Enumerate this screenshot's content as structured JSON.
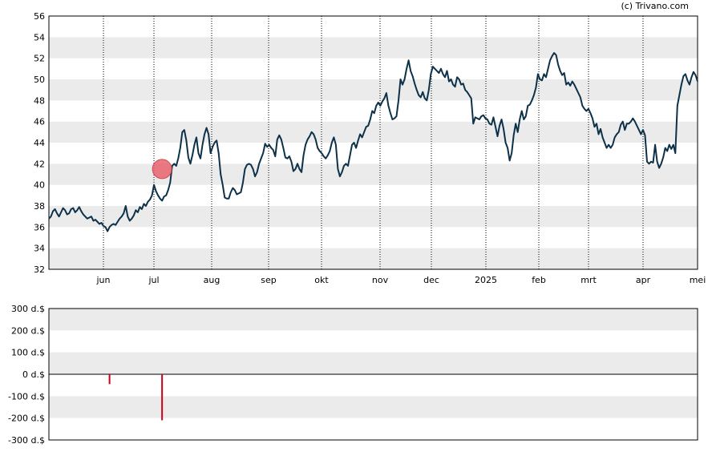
{
  "copyright": "(c) Trivano.com",
  "chart_data": [
    {
      "type": "line",
      "title": "",
      "xlabel": "",
      "ylabel": "",
      "ylim": [
        32,
        56
      ],
      "yticks": [
        32,
        34,
        36,
        38,
        40,
        42,
        44,
        46,
        48,
        50,
        52,
        54,
        56
      ],
      "x_tick_labels": [
        "jun",
        "jul",
        "aug",
        "sep",
        "okt",
        "nov",
        "dec",
        "2025",
        "feb",
        "mrt",
        "apr",
        "mei"
      ],
      "grid": "alternating horizontal bands, dotted vertical month lines",
      "line_color": "#0d3149",
      "series": [
        {
          "values": [
            36.8,
            37.0,
            37.5,
            37.7,
            37.3,
            37.0,
            37.4,
            37.8,
            37.6,
            37.2,
            37.3,
            37.7,
            37.8,
            37.4,
            37.6,
            37.9,
            37.5,
            37.2,
            37.0,
            36.8,
            36.9,
            37.0,
            36.6,
            36.7,
            36.5,
            36.3,
            36.4,
            36.1,
            36.0,
            35.6,
            36.0,
            36.2,
            36.3,
            36.2,
            36.5,
            36.8,
            37.0,
            37.3,
            38.0,
            37.0,
            36.6,
            36.8,
            37.1,
            37.6,
            37.4,
            37.9,
            37.7,
            38.2,
            38.0,
            38.4,
            38.6,
            39.0,
            40.0,
            39.4,
            39.0,
            38.7,
            38.5,
            38.9,
            39.0,
            39.5,
            40.2,
            41.8,
            42.0,
            41.8,
            42.5,
            43.5,
            45.0,
            45.2,
            44.2,
            42.6,
            42.0,
            42.8,
            43.8,
            44.5,
            43.0,
            42.5,
            43.8,
            44.8,
            45.4,
            44.8,
            43.0,
            43.6,
            44.0,
            44.2,
            43.0,
            41.0,
            40.0,
            38.8,
            38.7,
            38.7,
            39.3,
            39.7,
            39.5,
            39.1,
            39.2,
            39.3,
            40.2,
            41.5,
            41.9,
            42.0,
            41.9,
            41.5,
            40.8,
            41.2,
            42.0,
            42.5,
            43.0,
            43.9,
            43.6,
            43.8,
            43.5,
            43.3,
            42.7,
            44.3,
            44.7,
            44.3,
            43.5,
            42.6,
            42.5,
            42.7,
            42.2,
            41.3,
            41.5,
            42.0,
            41.5,
            41.2,
            42.8,
            43.8,
            44.3,
            44.6,
            45.0,
            44.8,
            44.3,
            43.5,
            43.2,
            43.0,
            42.7,
            42.5,
            42.8,
            43.2,
            44.0,
            44.5,
            43.8,
            41.5,
            40.8,
            41.2,
            41.8,
            42.0,
            41.8,
            42.8,
            43.8,
            44.0,
            43.5,
            44.2,
            44.8,
            44.5,
            45.0,
            45.5,
            45.6,
            46.2,
            47.0,
            46.8,
            47.5,
            47.8,
            47.5,
            47.9,
            48.2,
            48.7,
            47.5,
            46.8,
            46.2,
            46.3,
            46.5,
            48.0,
            50.0,
            49.5,
            50.0,
            51.0,
            51.8,
            50.8,
            50.3,
            49.6,
            49.0,
            48.5,
            48.3,
            48.8,
            48.2,
            48.0,
            49.0,
            50.5,
            51.2,
            51.0,
            50.8,
            50.6,
            51.0,
            50.5,
            50.2,
            50.8,
            49.8,
            50.0,
            49.5,
            49.3,
            50.2,
            50.0,
            49.5,
            49.6,
            49.0,
            48.8,
            48.5,
            48.2,
            45.8,
            46.4,
            46.3,
            46.2,
            46.5,
            46.6,
            46.3,
            46.2,
            45.8,
            45.7,
            46.4,
            45.5,
            44.6,
            45.6,
            46.2,
            45.3,
            44.0,
            43.5,
            42.3,
            43.0,
            44.7,
            45.8,
            45.0,
            46.2,
            47.0,
            46.2,
            46.5,
            47.5,
            47.6,
            48.0,
            48.5,
            49.2,
            50.5,
            50.0,
            49.9,
            50.5,
            50.2,
            51.0,
            51.8,
            52.2,
            52.5,
            52.3,
            51.4,
            50.8,
            50.4,
            50.6,
            49.5,
            49.7,
            49.4,
            49.8,
            49.5,
            49.1,
            48.7,
            48.3,
            47.5,
            47.2,
            47.0,
            47.2,
            46.8,
            46.3,
            45.5,
            45.8,
            44.8,
            45.3,
            44.5,
            44.0,
            43.5,
            43.8,
            43.5,
            43.8,
            44.5,
            44.8,
            45.0,
            45.7,
            46.0,
            45.2,
            45.8,
            45.8,
            46.0,
            46.3,
            46.0,
            45.6,
            45.2,
            44.8,
            45.2,
            44.7,
            42.2,
            42.0,
            42.2,
            42.1,
            43.8,
            42.2,
            41.6,
            42.0,
            42.6,
            43.5,
            43.2,
            43.8,
            43.4,
            43.8,
            43.0,
            47.5,
            48.5,
            49.5,
            50.3,
            50.5,
            49.9,
            49.5,
            50.2,
            50.7,
            50.4,
            49.8
          ]
        }
      ],
      "marker": {
        "series_index": 56,
        "value": 41.5,
        "color": "#e8636e"
      }
    },
    {
      "type": "bar",
      "title": "",
      "xlabel": "",
      "ylabel": "",
      "ylim": [
        -300,
        300
      ],
      "y_tick_labels": [
        "300 d.$",
        "200 d.$",
        "100 d.$",
        "0 d.$",
        "-100 d.$",
        "-200 d.$",
        "-300 d.$"
      ],
      "yticks": [
        300,
        200,
        100,
        0,
        -100,
        -200,
        -300
      ],
      "grid": "alternating horizontal bands",
      "bar_color": "#cc0018",
      "bars": [
        {
          "series_index": 30,
          "value": -45
        },
        {
          "series_index": 56,
          "value": -210
        }
      ]
    }
  ]
}
